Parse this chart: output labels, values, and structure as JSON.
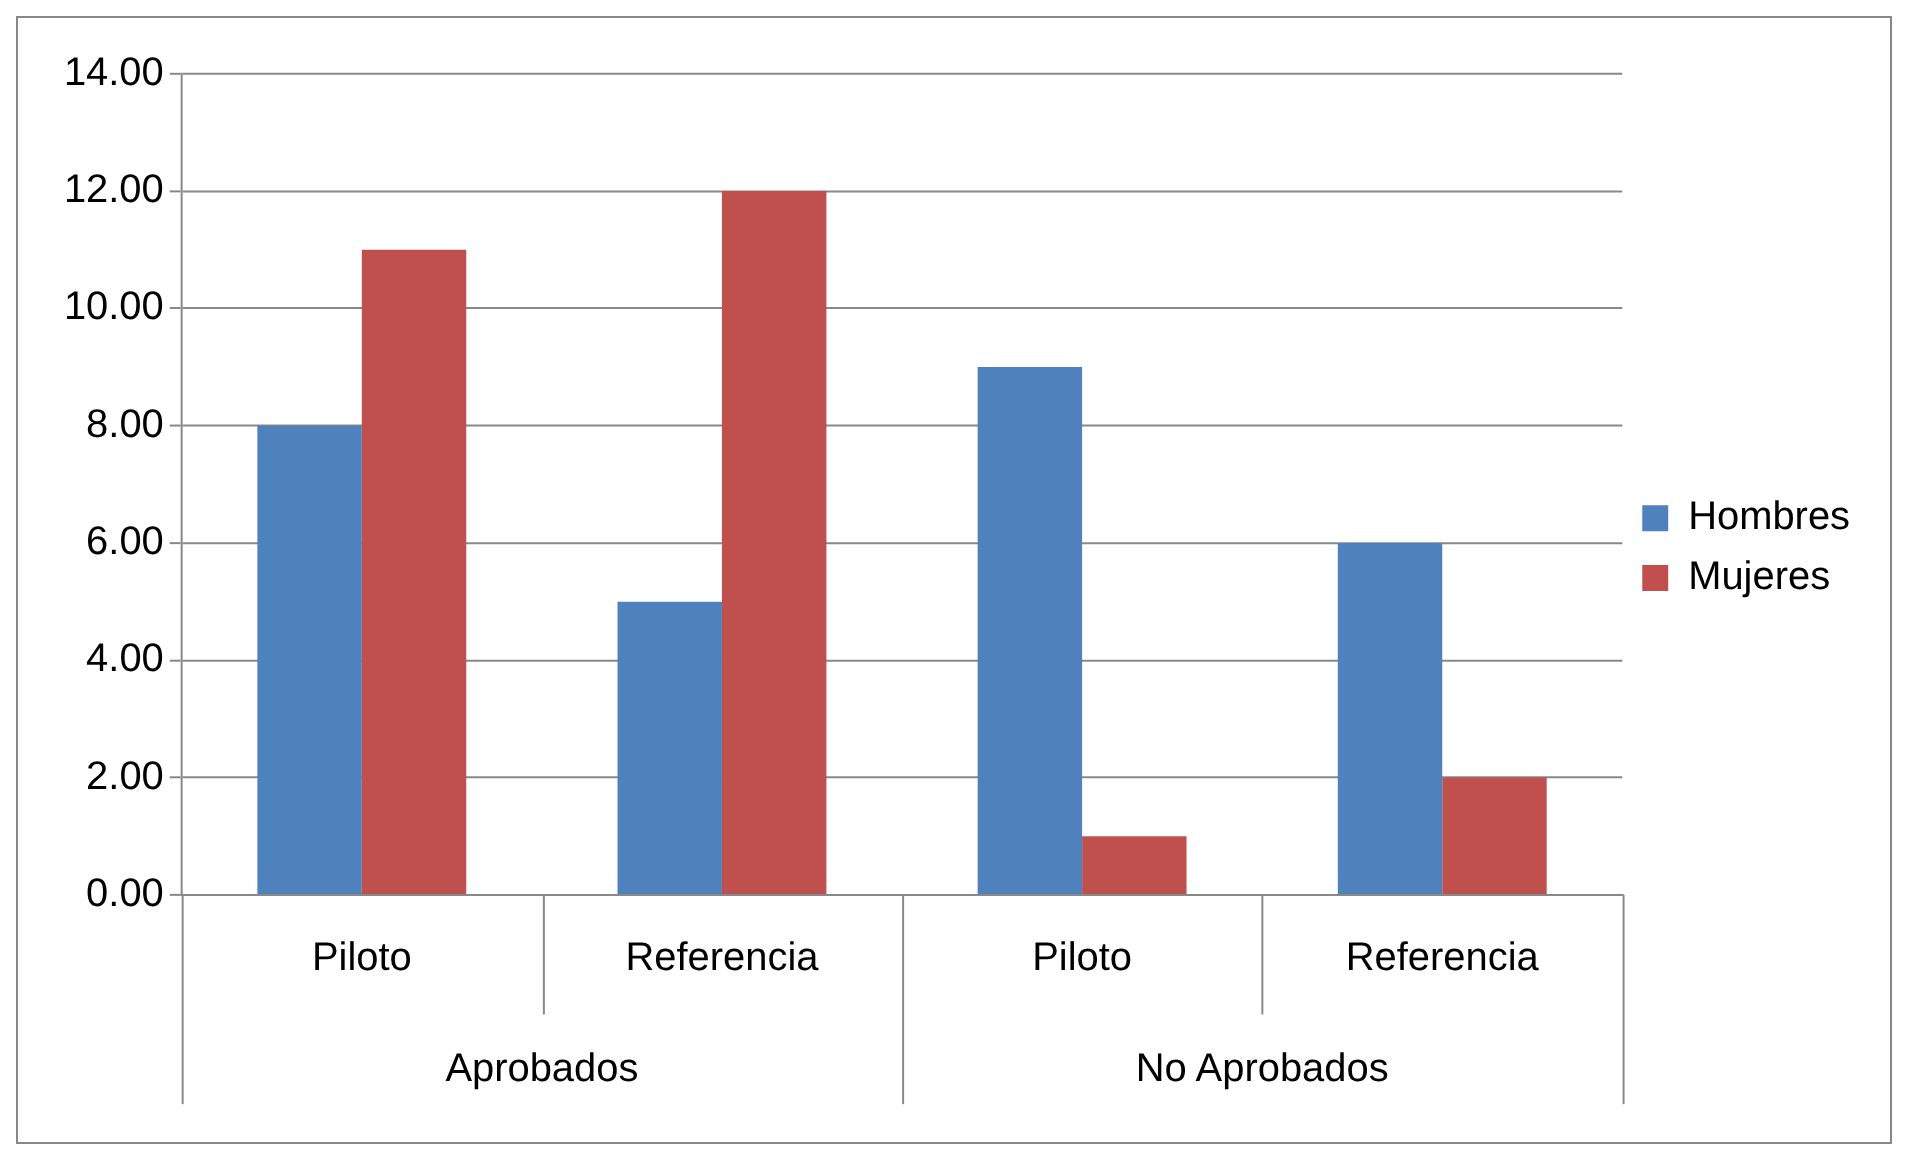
{
  "chart_data": {
    "type": "bar",
    "categories": [
      "Piloto",
      "Referencia",
      "Piloto",
      "Referencia"
    ],
    "series": [
      {
        "name": "Hombres",
        "color": "#4f81bd",
        "values": [
          8,
          5,
          9,
          6
        ]
      },
      {
        "name": "Mujeres",
        "color": "#c0504d",
        "values": [
          11,
          12,
          1,
          2
        ]
      }
    ],
    "ylim": [
      0,
      14
    ],
    "yticks": [
      {
        "value": 0,
        "label": "0.00"
      },
      {
        "value": 2,
        "label": "2.00"
      },
      {
        "value": 4,
        "label": "4.00"
      },
      {
        "value": 6,
        "label": "6.00"
      },
      {
        "value": 8,
        "label": "8.00"
      },
      {
        "value": 10,
        "label": "10.00"
      },
      {
        "value": 12,
        "label": "12.00"
      },
      {
        "value": 14,
        "label": "14.00"
      }
    ],
    "grid": "y",
    "legend": "right",
    "annotations": [
      "Aprobados",
      "No Aprobados"
    ]
  }
}
